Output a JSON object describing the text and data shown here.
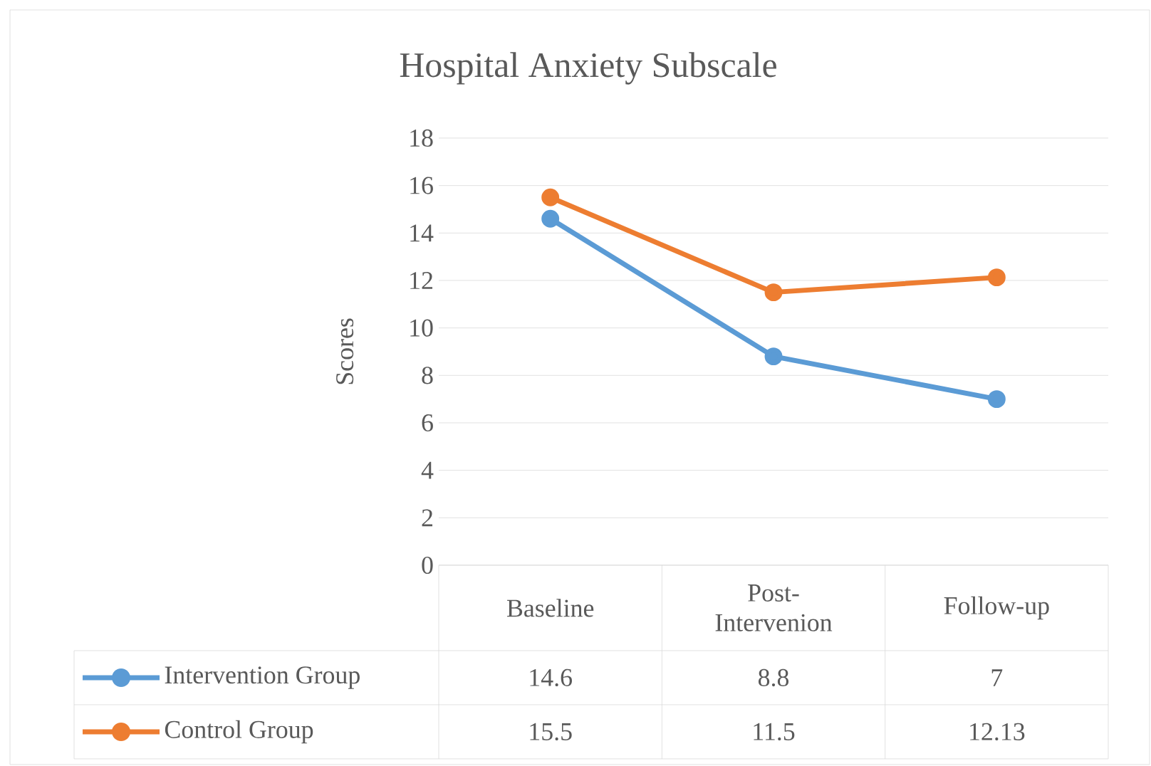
{
  "chart_data": {
    "type": "line",
    "title": "Hospital Anxiety Subscale",
    "ylabel": "Scores",
    "categories": [
      "Baseline",
      "Post-Intervenion",
      "Follow-up"
    ],
    "series": [
      {
        "name": "Intervention Group",
        "color": "#5b9bd5",
        "values": [
          14.6,
          8.8,
          7
        ]
      },
      {
        "name": "Control Group",
        "color": "#ed7d31",
        "values": [
          15.5,
          11.5,
          12.13
        ]
      }
    ],
    "ylim": [
      0,
      18
    ],
    "yticks": [
      0,
      2,
      4,
      6,
      8,
      10,
      12,
      14,
      16,
      18
    ],
    "grid": "y",
    "legend": "bottom",
    "marker": "circle",
    "line_style": "solid",
    "data_labels": true
  }
}
